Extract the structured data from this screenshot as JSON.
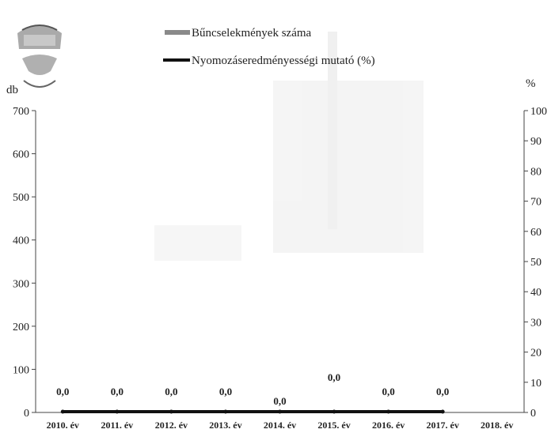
{
  "chart_data": {
    "type": "bar",
    "title": "",
    "left_axis_unit": "db",
    "right_axis_unit": "%",
    "categories": [
      "2010. év",
      "2011. év",
      "2012. év",
      "2013. év",
      "2014. év",
      "2015. év",
      "2016. év",
      "2017. év",
      "2018. év"
    ],
    "left_ticks": [
      "0",
      "100",
      "200",
      "300",
      "400",
      "500",
      "600",
      "700"
    ],
    "right_ticks": [
      "0",
      "10",
      "20",
      "30",
      "40",
      "50",
      "60",
      "70",
      "80",
      "90",
      "100"
    ],
    "ylim": [
      0,
      700
    ],
    "y2lim": [
      0,
      100
    ],
    "legend_position": "top",
    "series": [
      {
        "name": "Bűncselekmények száma",
        "type": "bar",
        "axis": "left",
        "values": [
          0,
          0,
          0,
          0,
          0,
          0,
          0,
          0,
          0
        ]
      },
      {
        "name": "Nyomozáseredményességi mutató (%)",
        "type": "line",
        "axis": "right",
        "values": [
          0,
          0,
          0,
          0,
          0,
          0,
          0,
          0,
          0
        ]
      }
    ],
    "data_labels": [
      {
        "category": "2010. év",
        "text": "0,0"
      },
      {
        "category": "2011. év",
        "text": "0,0"
      },
      {
        "category": "2012. év",
        "text": "0,0"
      },
      {
        "category": "2013. év",
        "text": "0,0"
      },
      {
        "category": "2014. év",
        "text": "0,0"
      },
      {
        "category": "2015. év",
        "text": "0,0"
      },
      {
        "category": "2016. év",
        "text": "0,0"
      },
      {
        "category": "2017. év",
        "text": "0,0"
      }
    ],
    "colors": {
      "bar_series": "#8a8a8a",
      "line_series": "#111111",
      "axis": "#444444"
    }
  }
}
